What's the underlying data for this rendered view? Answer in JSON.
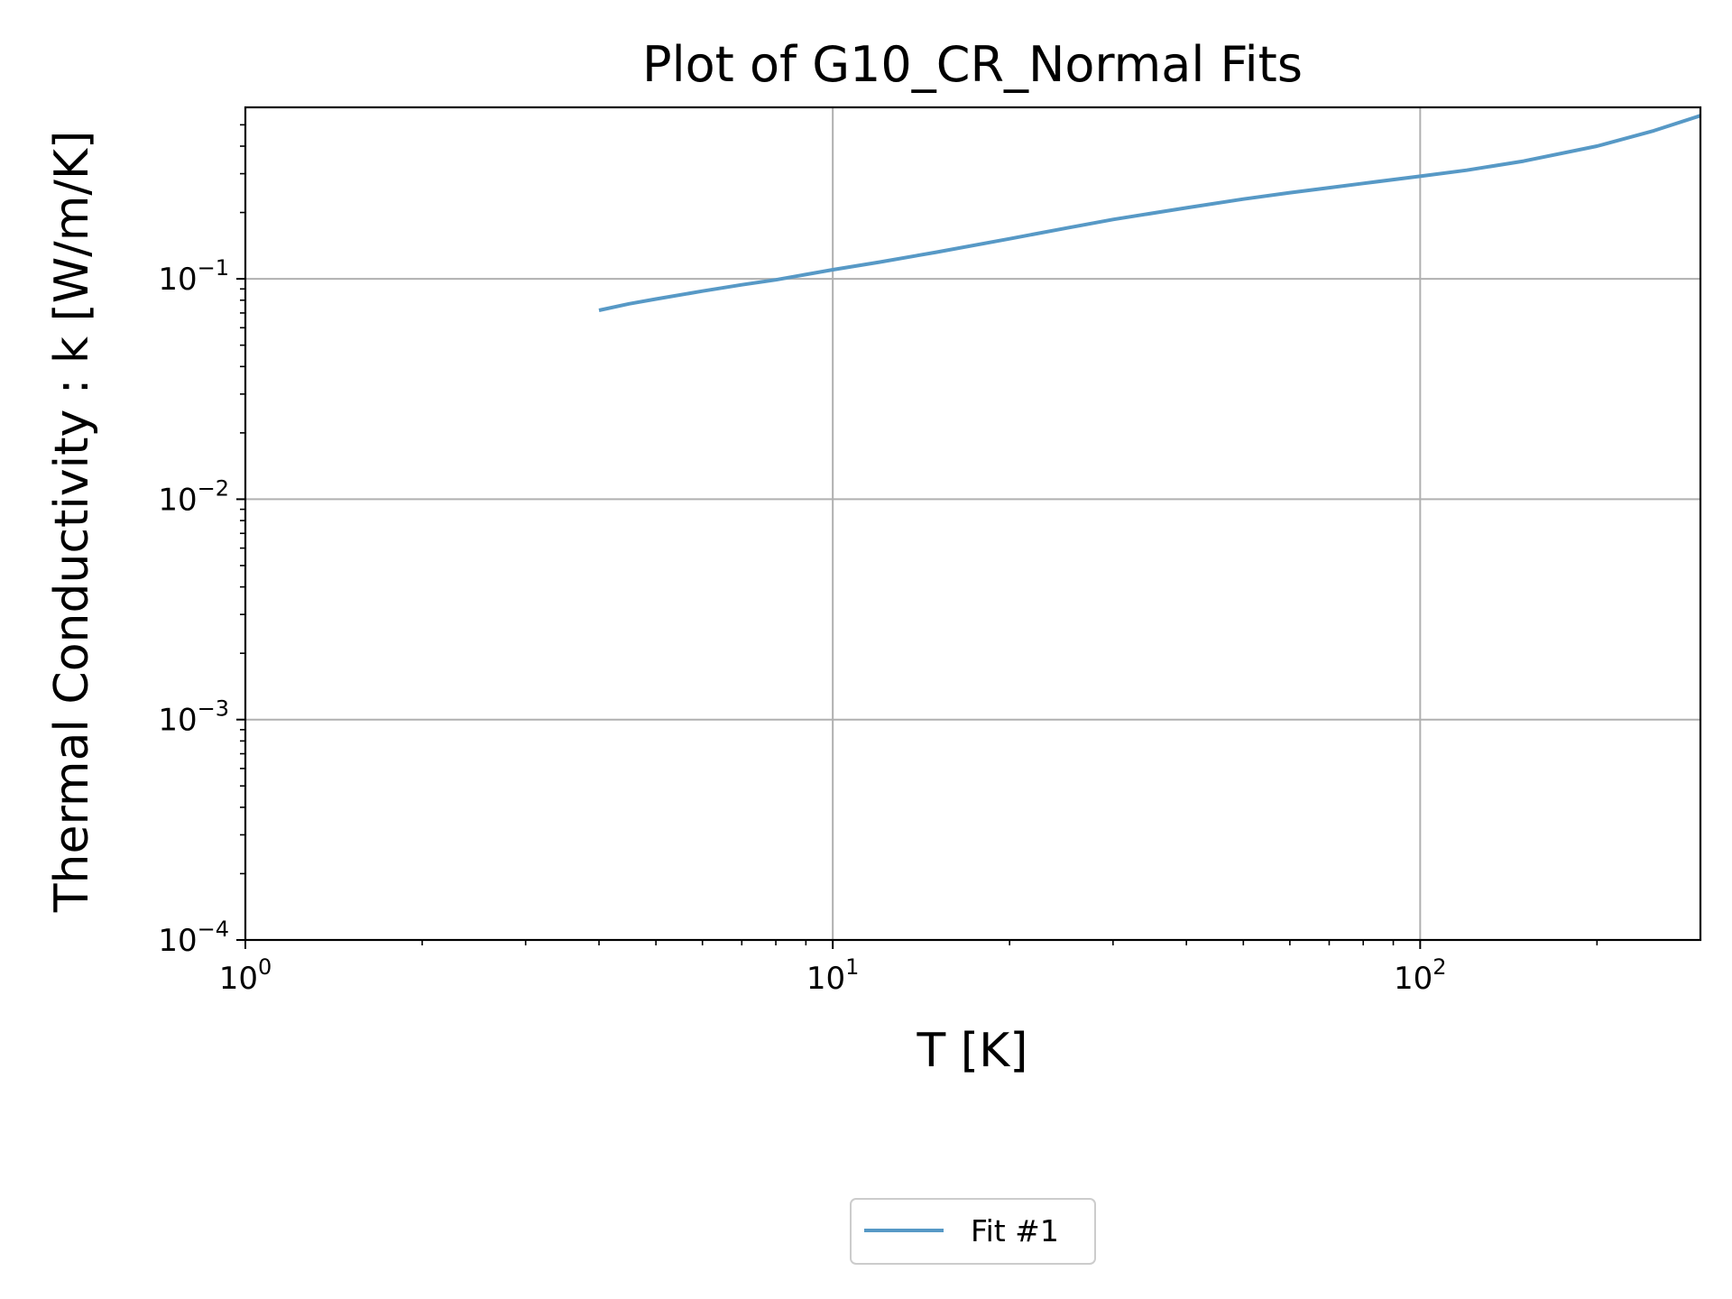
{
  "chart_data": {
    "type": "line",
    "title": "Plot of G10_CR_Normal Fits",
    "xlabel": "T [K]",
    "ylabel": "Thermal Conductivity : k [W/m/K]",
    "xscale": "log",
    "yscale": "log",
    "xlim": [
      1,
      300
    ],
    "ylim": [
      0.0001,
      0.6
    ],
    "grid": true,
    "legend_position": "bottom-center",
    "x_ticks": [
      {
        "value": 1,
        "base": "10",
        "exp": "0"
      },
      {
        "value": 10,
        "base": "10",
        "exp": "1"
      },
      {
        "value": 100,
        "base": "10",
        "exp": "2"
      }
    ],
    "y_ticks": [
      {
        "value": 0.0001,
        "base": "10",
        "exp": "−4"
      },
      {
        "value": 0.001,
        "base": "10",
        "exp": "−3"
      },
      {
        "value": 0.01,
        "base": "10",
        "exp": "−2"
      },
      {
        "value": 0.1,
        "base": "10",
        "exp": "−1"
      }
    ],
    "series": [
      {
        "name": "Fit #1",
        "color": "#5799c6",
        "points": [
          [
            4,
            0.072
          ],
          [
            4.5,
            0.077
          ],
          [
            5,
            0.081
          ],
          [
            6,
            0.088
          ],
          [
            7,
            0.094
          ],
          [
            8,
            0.099
          ],
          [
            10,
            0.11
          ],
          [
            12,
            0.119
          ],
          [
            15,
            0.132
          ],
          [
            20,
            0.152
          ],
          [
            25,
            0.17
          ],
          [
            30,
            0.186
          ],
          [
            40,
            0.21
          ],
          [
            50,
            0.23
          ],
          [
            60,
            0.246
          ],
          [
            70,
            0.259
          ],
          [
            80,
            0.271
          ],
          [
            100,
            0.292
          ],
          [
            120,
            0.311
          ],
          [
            150,
            0.342
          ],
          [
            200,
            0.4
          ],
          [
            250,
            0.47
          ],
          [
            300,
            0.55
          ]
        ]
      }
    ]
  }
}
